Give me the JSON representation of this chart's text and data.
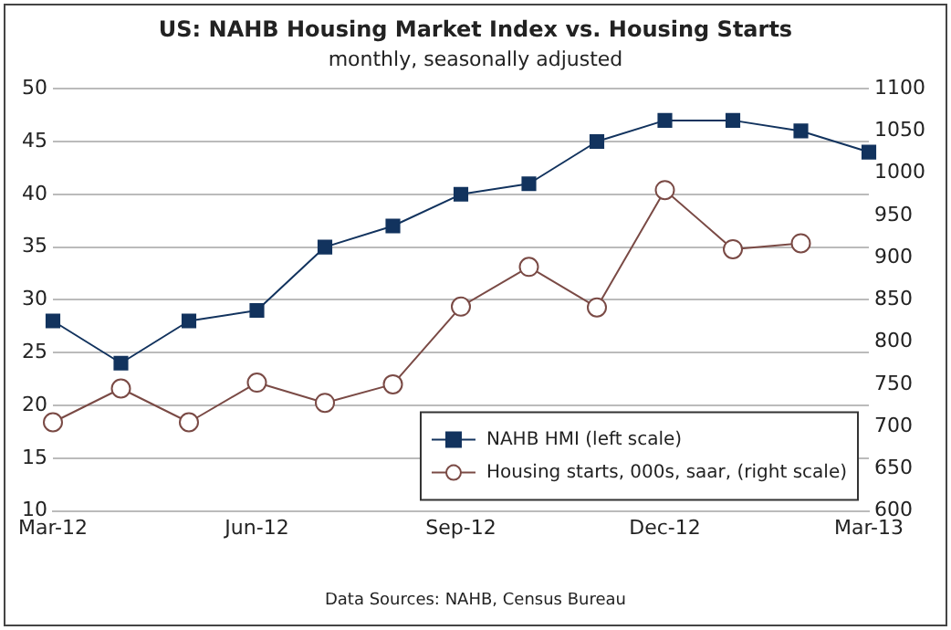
{
  "chart_data": {
    "type": "line",
    "title": "US: NAHB Housing Market Index vs. Housing Starts",
    "subtitle": "monthly, seasonally adjusted",
    "categories": [
      "Mar-12",
      null,
      null,
      "Jun-12",
      null,
      null,
      "Sep-12",
      null,
      null,
      "Dec-12",
      null,
      null,
      "Mar-13"
    ],
    "series": [
      {
        "name": "NAHB HMI (left scale)",
        "color": "#12335e",
        "marker": "square",
        "values": [
          28,
          24,
          28,
          29,
          35,
          37,
          40,
          41,
          45,
          47,
          47,
          46,
          44
        ]
      },
      {
        "name": "Housing starts, 000s, saar, (right scale)",
        "color": "#7a4a45",
        "marker": "circle",
        "axis": "y2",
        "values": [
          705,
          745,
          705,
          752,
          728,
          750,
          842,
          889,
          841,
          980,
          910,
          917,
          null
        ]
      }
    ],
    "ylim": [
      10,
      50
    ],
    "yticks": [
      10,
      15,
      20,
      25,
      30,
      35,
      40,
      45,
      50
    ],
    "y2lim": [
      600,
      1100
    ],
    "y2ticks": [
      600,
      650,
      700,
      750,
      800,
      850,
      900,
      950,
      1000,
      1050,
      1100
    ],
    "grid": "y",
    "legend": "bottom right",
    "annotations": [
      "Data Sources: NAHB, Census Bureau"
    ]
  }
}
